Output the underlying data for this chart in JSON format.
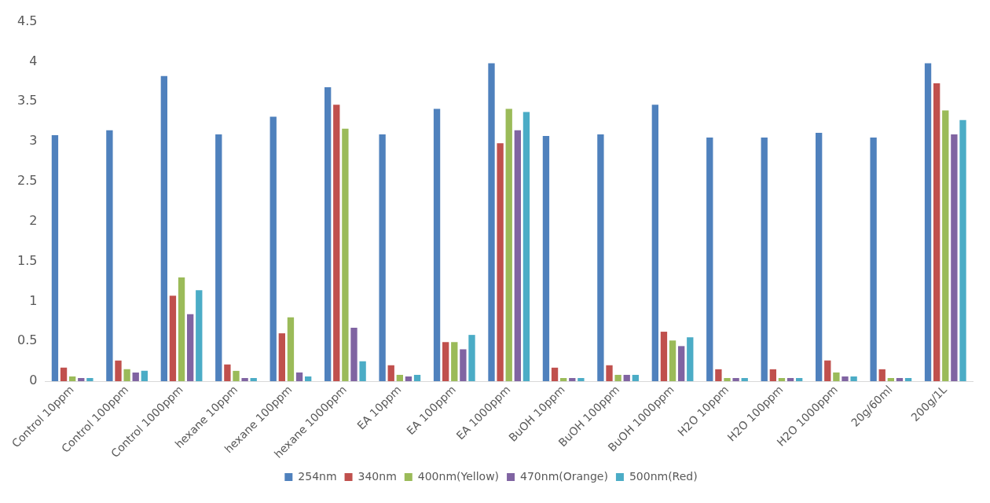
{
  "chart_data": {
    "type": "bar",
    "categories": [
      "Control 10ppm",
      "Control 100ppm",
      "Control 1000ppm",
      "hexane 10ppm",
      "hexane 100ppm",
      "hexane 1000ppm",
      "EA 10ppm",
      "EA 100ppm",
      "EA 1000ppm",
      "BuOH 10ppm",
      "BuOH 100ppm",
      "BuOH 1000ppm",
      "H2O 10ppm",
      "H2O 100ppm",
      "H2O 1000ppm",
      "20g/60ml",
      "200g/1L"
    ],
    "series": [
      {
        "name": "254nm",
        "color": "#4f81bd",
        "values": [
          3.08,
          3.14,
          3.82,
          3.09,
          3.31,
          3.68,
          3.09,
          3.41,
          3.98,
          3.07,
          3.09,
          3.46,
          3.05,
          3.05,
          3.11,
          3.05,
          3.98
        ]
      },
      {
        "name": "340nm",
        "color": "#c0504d",
        "values": [
          0.17,
          0.26,
          1.07,
          0.21,
          0.6,
          3.46,
          0.2,
          0.49,
          2.98,
          0.17,
          0.2,
          0.62,
          0.15,
          0.15,
          0.26,
          0.15,
          3.73
        ]
      },
      {
        "name": "400nm(Yellow)",
        "color": "#9bbb59",
        "values": [
          0.06,
          0.15,
          1.3,
          0.13,
          0.8,
          3.16,
          0.08,
          0.49,
          3.41,
          0.04,
          0.08,
          0.51,
          0.04,
          0.04,
          0.11,
          0.04,
          3.39
        ]
      },
      {
        "name": "470nm(Orange)",
        "color": "#8064a2",
        "values": [
          0.04,
          0.11,
          0.84,
          0.04,
          0.11,
          0.67,
          0.06,
          0.4,
          3.14,
          0.04,
          0.08,
          0.44,
          0.04,
          0.04,
          0.06,
          0.04,
          3.09
        ]
      },
      {
        "name": "500nm(Red)",
        "color": "#4bacc6",
        "values": [
          0.04,
          0.13,
          1.14,
          0.04,
          0.06,
          0.25,
          0.08,
          0.58,
          3.37,
          0.04,
          0.08,
          0.55,
          0.04,
          0.04,
          0.06,
          0.04,
          3.27
        ]
      }
    ],
    "ylim": [
      0,
      4.5
    ],
    "yticks": [
      0,
      0.5,
      1,
      1.5,
      2,
      2.5,
      3,
      3.5,
      4,
      4.5
    ],
    "grid": false,
    "legend": "bottom"
  }
}
